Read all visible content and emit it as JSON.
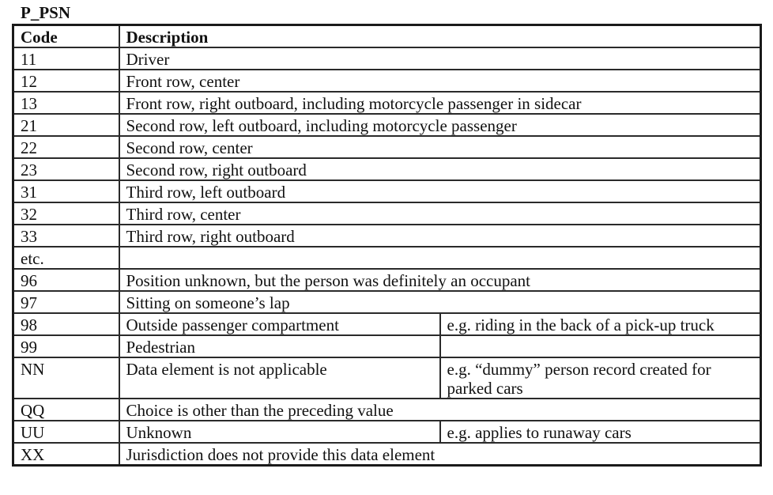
{
  "title": "P_PSN",
  "headers": {
    "code": "Code",
    "description": "Description"
  },
  "rows": [
    {
      "code": "11",
      "description": "Driver",
      "note": null
    },
    {
      "code": "12",
      "description": "Front row, center",
      "note": null
    },
    {
      "code": "13",
      "description": "Front row, right outboard, including motorcycle passenger in sidecar",
      "note": null
    },
    {
      "code": "21",
      "description": "Second row, left outboard, including motorcycle passenger",
      "note": null
    },
    {
      "code": "22",
      "description": "Second row, center",
      "note": null
    },
    {
      "code": "23",
      "description": "Second row, right outboard",
      "note": null
    },
    {
      "code": "31",
      "description": "Third row, left outboard",
      "note": null
    },
    {
      "code": "32",
      "description": "Third row, center",
      "note": null
    },
    {
      "code": "33",
      "description": "Third row, right outboard",
      "note": null
    },
    {
      "code": "etc.",
      "description": "",
      "note": null
    },
    {
      "code": "96",
      "description": "Position unknown, but the person was definitely an occupant",
      "note": null
    },
    {
      "code": "97",
      "description": "Sitting on someone’s lap",
      "note": null
    },
    {
      "code": "98",
      "description": "Outside passenger compartment",
      "note": "e.g. riding in the back of a pick-up truck"
    },
    {
      "code": "99",
      "description": "Pedestrian",
      "note": ""
    },
    {
      "code": "NN",
      "description": "Data element is not applicable",
      "note": "e.g. “dummy” person record created for parked cars"
    },
    {
      "code": "QQ",
      "description": "Choice is other than the preceding value",
      "note": null
    },
    {
      "code": "UU",
      "description": "Unknown",
      "note": "e.g. applies to runaway cars"
    },
    {
      "code": "XX",
      "description": "Jurisdiction does not provide this data element",
      "note": null
    }
  ]
}
